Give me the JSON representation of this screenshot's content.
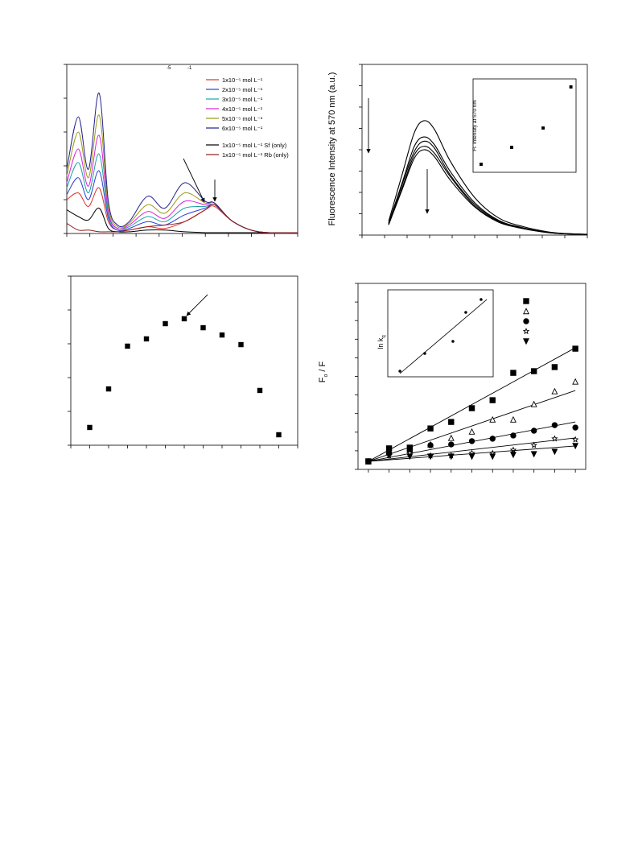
{
  "chart_data": [
    {
      "type": "line",
      "annotations": [
        "-5",
        "-1"
      ],
      "x": [
        0,
        5,
        9.4,
        14,
        18,
        22,
        27,
        35,
        42.5,
        51,
        60,
        64,
        72,
        83,
        100
      ],
      "xlim": [
        0,
        100
      ],
      "ylim": [
        0,
        100
      ],
      "xticks": [
        0,
        10,
        20,
        30,
        40,
        50,
        60,
        70,
        80,
        90,
        100
      ],
      "yticks": [
        0,
        20,
        40,
        60,
        80,
        100
      ],
      "series": [
        {
          "name": "1x10⁻⁵ mol L⁻¹",
          "color": "#e0312b",
          "values": [
            20,
            24,
            16,
            27,
            7,
            2,
            2,
            4,
            3,
            7,
            14,
            16,
            7,
            1,
            0.5
          ]
        },
        {
          "name": "2x10⁻⁵ mol L⁻¹",
          "color": "#2b3bd8",
          "values": [
            23,
            33,
            20,
            37,
            9,
            2,
            3,
            7,
            5,
            11,
            15,
            17,
            7,
            1,
            0.5
          ]
        },
        {
          "name": "3x10⁻⁵ mol L⁻¹",
          "color": "#1aa3a3",
          "values": [
            27,
            42,
            24,
            47,
            11,
            3,
            4,
            10,
            7,
            15,
            16,
            17,
            7,
            1,
            0.5
          ]
        },
        {
          "name": "4x10⁻⁵ mol L⁻¹",
          "color": "#e020e0",
          "values": [
            30,
            50,
            28,
            58,
            13,
            3,
            5,
            13,
            9,
            19,
            17,
            18,
            7,
            1,
            0.5
          ]
        },
        {
          "name": "5x10⁻⁵ mol L⁻¹",
          "color": "#9a9a10",
          "values": [
            34,
            60,
            33,
            70,
            16,
            4,
            6,
            17,
            12,
            24,
            18,
            18,
            7,
            1,
            0.5
          ]
        },
        {
          "name": "6x10⁻⁵ mol L⁻¹",
          "color": "#202090",
          "values": [
            38,
            69,
            38,
            83,
            19,
            5,
            7,
            22,
            15,
            30,
            19,
            18,
            7,
            1,
            0.5
          ]
        },
        {
          "name": "1x10⁻⁵ mol L⁻¹ Sf (only)",
          "color": "#000000",
          "values": [
            14,
            10,
            8,
            15,
            3,
            1,
            1,
            2,
            2,
            1,
            0.5,
            0.5,
            0.5,
            0.5,
            0.5
          ]
        },
        {
          "name": "1x10⁻⁵ mol L⁻¹ Rb (only)",
          "color": "#8b1a1a",
          "values": [
            6,
            2,
            2,
            1,
            1,
            1,
            2,
            4,
            5,
            7,
            14,
            17,
            7,
            1,
            0.5
          ]
        }
      ]
    },
    {
      "type": "line",
      "y_label": "Fluorescence Intensity at 570 nm (a.u.)",
      "x": [
        11.8,
        17.9,
        23.2,
        27.5,
        32.1,
        39.3,
        50,
        60.7,
        71.4,
        82.1,
        89.3,
        100
      ],
      "xlim": [
        0,
        100
      ],
      "ylim": [
        0,
        100
      ],
      "xticks": [
        0,
        10,
        20,
        30,
        40,
        50,
        60,
        70,
        80,
        90,
        100
      ],
      "yticks": [
        0,
        12.5,
        25,
        37.5,
        50,
        62.5,
        75,
        87.5,
        100
      ],
      "series": [
        {
          "color": "#000000",
          "values": [
            8,
            36,
            60,
            67,
            62,
            43,
            22,
            10,
            5,
            2,
            1,
            0.5
          ]
        },
        {
          "color": "#000000",
          "values": [
            7,
            31,
            52,
            57.5,
            53,
            37,
            19,
            8.6,
            4.3,
            1.7,
            0.9,
            0.4
          ]
        },
        {
          "color": "#000000",
          "values": [
            6.6,
            30,
            49,
            55,
            51,
            35,
            18,
            8.2,
            4.1,
            1.6,
            0.8,
            0.4
          ]
        },
        {
          "color": "#000000",
          "values": [
            6.2,
            28,
            47,
            52,
            48,
            34,
            17,
            7.8,
            3.9,
            1.6,
            0.8,
            0.4
          ]
        },
        {
          "color": "#000000",
          "values": [
            6,
            27,
            45,
            50,
            46,
            32,
            16.5,
            7.5,
            3.8,
            1.5,
            0.8,
            0.4
          ]
        }
      ],
      "inset": {
        "type": "scatter",
        "y_label": "Fl. intensity at 570 nm",
        "x": [
          7.8,
          37.5,
          68,
          95
        ],
        "values": [
          8.6,
          26.7,
          47.4,
          91.4
        ],
        "xlim": [
          0,
          100
        ],
        "ylim": [
          0,
          100
        ]
      }
    },
    {
      "type": "scatter",
      "x": [
        1,
        2,
        3,
        4,
        5,
        6,
        7,
        8,
        9,
        10,
        11
      ],
      "values": [
        10.5,
        33.3,
        58.6,
        62.9,
        71.9,
        74.8,
        69.5,
        65.2,
        59.5,
        32.4,
        6.2
      ],
      "xlim": [
        0,
        12
      ],
      "ylim": [
        0,
        100
      ],
      "xticks": [
        0,
        1,
        2,
        3,
        4,
        5,
        6,
        7,
        8,
        9,
        10,
        11,
        12
      ],
      "yticks": [
        0,
        20,
        40,
        60,
        80,
        100
      ]
    },
    {
      "type": "scatter",
      "y_label": {
        "main": "F",
        "sub": "o",
        "rest": " / F"
      },
      "x": [
        0,
        1,
        2,
        3,
        4,
        5,
        6,
        7,
        8,
        9,
        10
      ],
      "fit_x": [
        0,
        10
      ],
      "xlim": [
        -0.5,
        10.5
      ],
      "ylim": [
        0,
        100
      ],
      "xticks": [
        0,
        1,
        2,
        3,
        4,
        5,
        6,
        7,
        8,
        9,
        10
      ],
      "yticks": [
        0,
        10,
        20,
        30,
        40,
        50,
        60,
        70,
        80,
        90,
        100
      ],
      "series": [
        {
          "marker": "square",
          "filled": true,
          "values": [
            4.3,
            11.3,
            11.7,
            22,
            25.5,
            32.9,
            37.2,
            51.9,
            52.8,
            55,
            64.9
          ],
          "fit": [
            4.3,
            65.4
          ]
        },
        {
          "marker": "triangle",
          "filled": false,
          "values": [
            4.3,
            9.5,
            10.4,
            13.4,
            16.9,
            20.3,
            26.8,
            26.8,
            35.1,
            42,
            47.2
          ],
          "fit": [
            4.3,
            42.4
          ]
        },
        {
          "marker": "circle",
          "filled": true,
          "values": [
            4.3,
            8.7,
            10,
            13,
            13.4,
            15.2,
            16.5,
            18.2,
            20.8,
            23.8,
            22.5
          ],
          "fit": [
            4.3,
            25.5
          ]
        },
        {
          "marker": "star",
          "filled": false,
          "values": [
            4.3,
            7.4,
            8.7,
            7.4,
            7.4,
            8.7,
            8.7,
            10.4,
            13,
            16.5,
            16
          ],
          "fit": [
            4.3,
            16.9
          ]
        },
        {
          "marker": "triangle-down",
          "filled": true,
          "values": [
            4.3,
            7.4,
            6.9,
            6.9,
            6.9,
            6.9,
            6.9,
            7.8,
            8.2,
            9.5,
            12.6
          ],
          "fit": [
            4.3,
            12.6
          ]
        }
      ],
      "inset": {
        "type": "scatter",
        "y_label": {
          "main": "ln k",
          "sub": "q"
        },
        "x": [
          11.5,
          35.1,
          61.8,
          74,
          88.5
        ],
        "values": [
          6.5,
          26.9,
          40.7,
          74.1,
          88.9
        ],
        "fit_x": [
          11.5,
          94
        ],
        "fit": [
          3.7,
          88.9
        ],
        "xlim": [
          0,
          100
        ],
        "ylim": [
          0,
          100
        ]
      }
    }
  ]
}
